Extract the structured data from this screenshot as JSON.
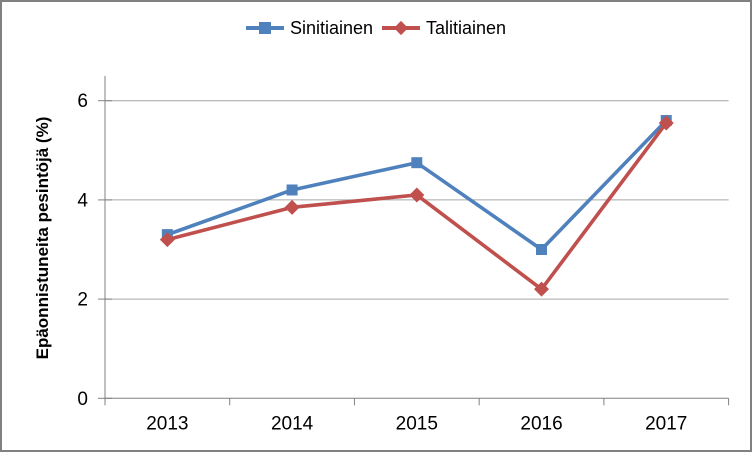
{
  "frame": {
    "background": "#ffffff",
    "border_color": "#808080"
  },
  "chart_data": {
    "type": "line",
    "title": "",
    "xlabel": "",
    "ylabel": "Epäonnistuneita pesintöjä (%)",
    "categories": [
      "2013",
      "2014",
      "2015",
      "2016",
      "2017"
    ],
    "series": [
      {
        "name": "Sinitiainen",
        "color": "#4F81BD",
        "marker": "square",
        "values": [
          3.3,
          4.2,
          4.75,
          3.0,
          5.6
        ]
      },
      {
        "name": "Talitiainen",
        "color": "#C0504D",
        "marker": "diamond",
        "values": [
          3.2,
          3.85,
          4.1,
          2.2,
          5.55
        ]
      }
    ],
    "ylim": [
      0,
      6.5
    ],
    "yticks": [
      0,
      2,
      4,
      6
    ],
    "grid": true,
    "legend_position": "top",
    "colors": {
      "axis": "#808080",
      "gridline": "#A6A6A6",
      "tick_text": "#000000"
    }
  }
}
